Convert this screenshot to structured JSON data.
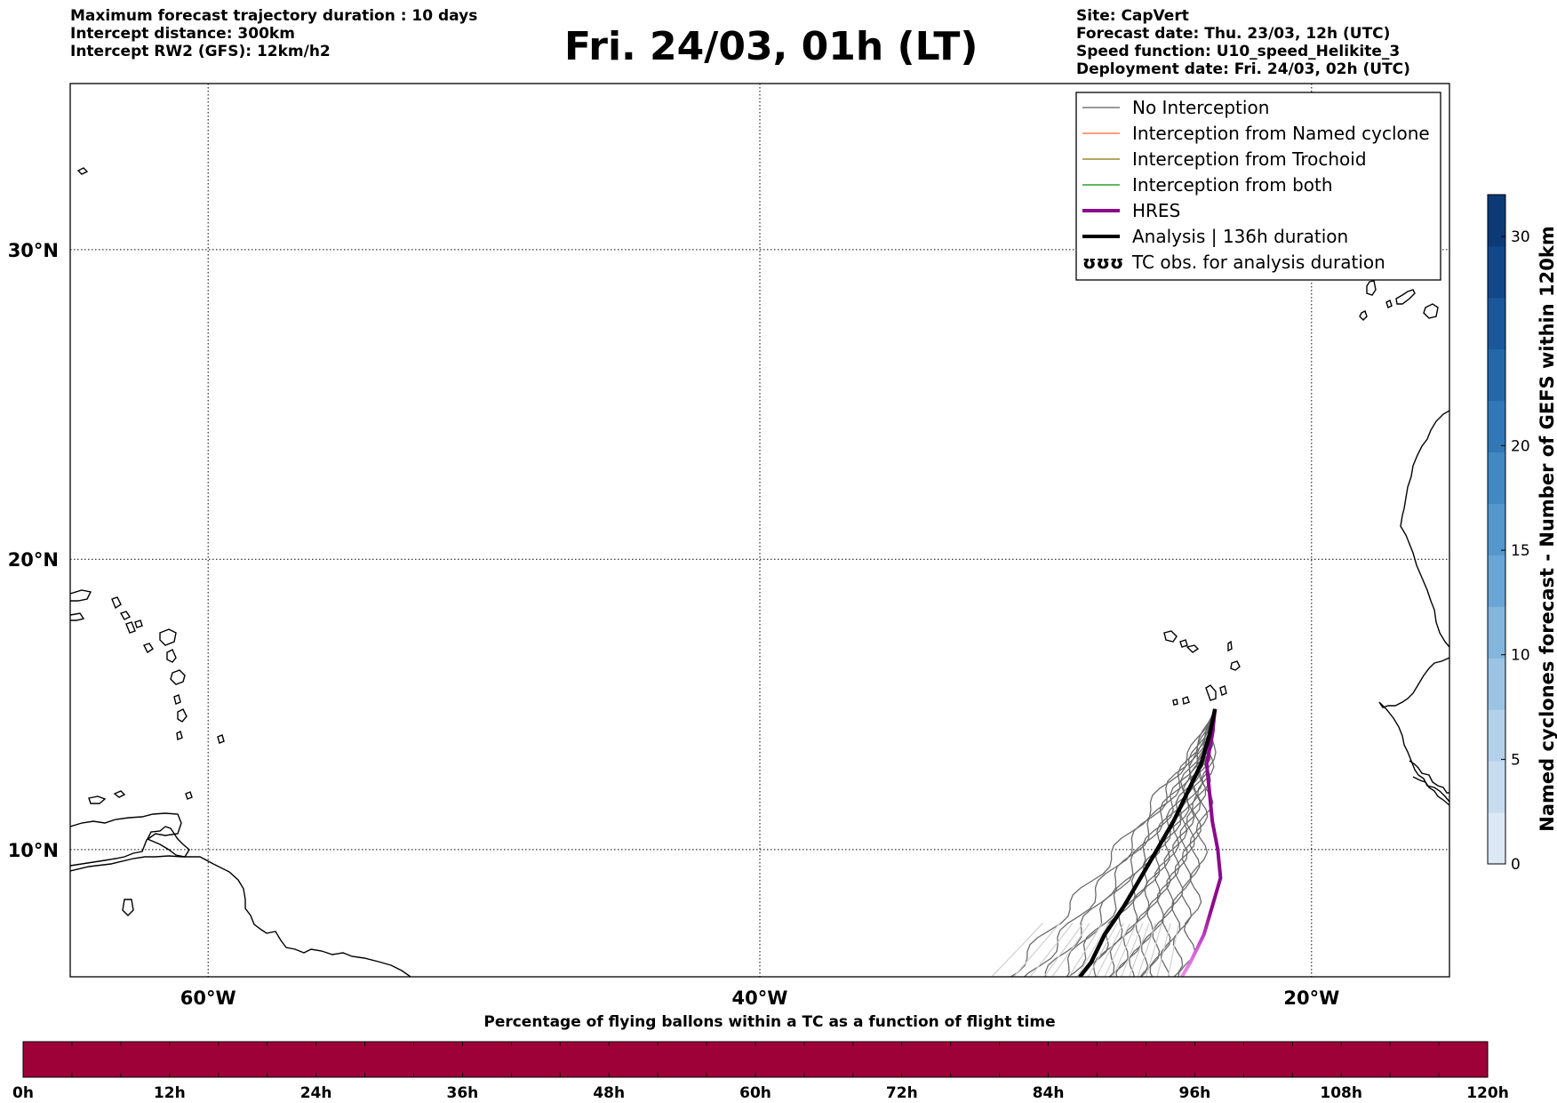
{
  "header": {
    "title": "Fri. 24/03, 01h (LT)",
    "left_lines": [
      "Maximum forecast trajectory duration : 10 days",
      "Intercept distance: 300km",
      "Intercept RW2 (GFS):  12km/h2"
    ],
    "right_lines": [
      "Site: CapVert",
      "Forecast date: Thu. 23/03, 12h (UTC)",
      "Speed function: U10_speed_Helikite_3",
      "Deployment date: Fri. 24/03, 02h (UTC)"
    ]
  },
  "map": {
    "lon_range": [
      -65,
      -15
    ],
    "lat_range": [
      5.5,
      35
    ],
    "gridlines": true,
    "x_ticks": [
      {
        "lon": -60,
        "label": "60°W"
      },
      {
        "lon": -40,
        "label": "40°W"
      },
      {
        "lon": -20,
        "label": "20°W"
      }
    ],
    "y_ticks": [
      {
        "lat": 30,
        "label": "30°N"
      },
      {
        "lat": 20,
        "label": "20°N"
      },
      {
        "lat": 10,
        "label": "10°N"
      }
    ]
  },
  "legend": {
    "placement": "top-right",
    "items": [
      {
        "label": "No Interception",
        "color": "#777777",
        "style": "thin"
      },
      {
        "label": "Interception from Named cyclone",
        "color": "#ff7f50",
        "style": "thin"
      },
      {
        "label": "Interception from Trochoid",
        "color": "#9a8a2a",
        "style": "thin"
      },
      {
        "label": "Interception from both",
        "color": "#2ca02c",
        "style": "thin"
      },
      {
        "label": "HRES",
        "color": "#8b0a8b",
        "style": "thick"
      },
      {
        "label": "Analysis | 136h duration",
        "color": "#000000",
        "style": "thick"
      },
      {
        "label": "TC obs. for analysis duration",
        "color": "#000000",
        "style": "symbol",
        "symbol": "ʊʊʊ"
      }
    ]
  },
  "colorbar_right": {
    "title": "Named cyclones forecast - Number of GEFS within 120km",
    "range": [
      0,
      32
    ],
    "ticks": [
      0,
      5,
      10,
      15,
      20,
      30
    ],
    "colors": [
      "#dce8f5",
      "#c8dcf0",
      "#b3d1ea",
      "#9cc3e3",
      "#84b5dc",
      "#6aa6d5",
      "#5497cc",
      "#4288c2",
      "#3278b6",
      "#2568a9",
      "#1a589a",
      "#124889",
      "#0c3a76"
    ]
  },
  "colorbar_bottom": {
    "title": "Percentage of flying ballons within a TC as a function of flight time",
    "color": "#9e0038",
    "ticks": [
      "0h",
      "12h",
      "24h",
      "36h",
      "48h",
      "60h",
      "72h",
      "84h",
      "96h",
      "108h",
      "120h"
    ]
  },
  "chart_data": {
    "type": "line",
    "origin": {
      "lon": -23.5,
      "lat": 14.9
    },
    "analysis": [
      {
        "lon": -23.5,
        "lat": 14.9
      },
      {
        "lon": -23.7,
        "lat": 14.0
      },
      {
        "lon": -24.0,
        "lat": 13.0
      },
      {
        "lon": -24.5,
        "lat": 12.0
      },
      {
        "lon": -25.0,
        "lat": 11.0
      },
      {
        "lon": -25.6,
        "lat": 10.0
      },
      {
        "lon": -26.2,
        "lat": 9.0
      },
      {
        "lon": -26.8,
        "lat": 8.0
      },
      {
        "lon": -27.5,
        "lat": 7.0
      },
      {
        "lon": -28.0,
        "lat": 6.0
      },
      {
        "lon": -28.4,
        "lat": 5.5
      }
    ],
    "hres": [
      {
        "lon": -23.5,
        "lat": 14.9
      },
      {
        "lon": -23.6,
        "lat": 14.0
      },
      {
        "lon": -23.8,
        "lat": 13.0
      },
      {
        "lon": -23.7,
        "lat": 12.0
      },
      {
        "lon": -23.6,
        "lat": 11.0
      },
      {
        "lon": -23.4,
        "lat": 10.0
      },
      {
        "lon": -23.3,
        "lat": 9.0
      },
      {
        "lon": -23.6,
        "lat": 8.0
      },
      {
        "lon": -23.9,
        "lat": 7.0
      },
      {
        "lon": -24.4,
        "lat": 6.0
      },
      {
        "lon": -24.7,
        "lat": 5.5
      }
    ],
    "ensemble_end_lons": [
      -31.0,
      -30.2,
      -29.6,
      -29.1,
      -28.8,
      -28.2,
      -27.9,
      -27.5,
      -27.2,
      -26.9,
      -26.6,
      -26.3,
      -26.0,
      -25.7,
      -25.4,
      -25.0,
      -24.6
    ],
    "ensemble_members": 17
  }
}
